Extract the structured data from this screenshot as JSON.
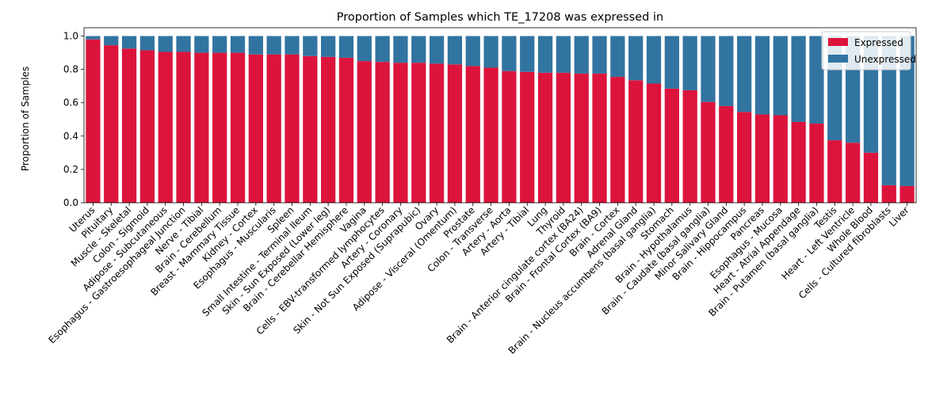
{
  "chart_data": {
    "type": "bar",
    "stacked": true,
    "title": "Proportion of Samples which TE_17208 was expressed in",
    "xlabel": "",
    "ylabel": "Proportion of Samples",
    "ylim": [
      0,
      1.05
    ],
    "yticks": [
      0.0,
      0.2,
      0.4,
      0.6,
      0.8,
      1.0
    ],
    "ytick_labels": [
      "0.0",
      "0.2",
      "0.4",
      "0.6",
      "0.8",
      "1.0"
    ],
    "grid": false,
    "legend_position": "top-right",
    "categories": [
      "Uterus",
      "Pituitary",
      "Muscle - Skeletal",
      "Colon - Sigmoid",
      "Adipose - Subcutaneous",
      "Esophagus - Gastroesophageal Junction",
      "Nerve - Tibial",
      "Brain - Cerebellum",
      "Breast - Mammary Tissue",
      "Kidney - Cortex",
      "Esophagus - Muscularis",
      "Spleen",
      "Small Intestine - Terminal Ileum",
      "Skin - Sun Exposed (Lower leg)",
      "Brain - Cerebellar Hemisphere",
      "Vagina",
      "Cells - EBV-transformed lymphocytes",
      "Artery - Coronary",
      "Skin - Not Sun Exposed (Suprapubic)",
      "Ovary",
      "Adipose - Visceral (Omentum)",
      "Prostate",
      "Colon - Transverse",
      "Artery - Aorta",
      "Artery - Tibial",
      "Lung",
      "Thyroid",
      "Brain - Anterior cingulate cortex (BA24)",
      "Brain - Frontal Cortex (BA9)",
      "Brain - Cortex",
      "Adrenal Gland",
      "Brain - Nucleus accumbens (basal ganglia)",
      "Stomach",
      "Brain - Hypothalamus",
      "Brain - Caudate (basal ganglia)",
      "Minor Salivary Gland",
      "Brain - Hippocampus",
      "Pancreas",
      "Esophagus - Mucosa",
      "Heart - Atrial Appendage",
      "Brain - Putamen (basal ganglia)",
      "Testis",
      "Heart - Left Ventricle",
      "Whole Blood",
      "Cells - Cultured fibroblasts",
      "Liver"
    ],
    "series": [
      {
        "name": "Expressed",
        "color": "#dc143c",
        "values": [
          0.98,
          0.945,
          0.925,
          0.915,
          0.905,
          0.905,
          0.9,
          0.9,
          0.9,
          0.89,
          0.89,
          0.89,
          0.88,
          0.875,
          0.87,
          0.85,
          0.845,
          0.84,
          0.84,
          0.835,
          0.83,
          0.82,
          0.81,
          0.79,
          0.785,
          0.78,
          0.78,
          0.775,
          0.775,
          0.755,
          0.735,
          0.715,
          0.685,
          0.675,
          0.605,
          0.58,
          0.545,
          0.53,
          0.525,
          0.485,
          0.475,
          0.375,
          0.36,
          0.3,
          0.105,
          0.1
        ]
      },
      {
        "name": "Unexpressed",
        "color": "#3274a1",
        "values": [
          0.02,
          0.055,
          0.075,
          0.085,
          0.095,
          0.095,
          0.1,
          0.1,
          0.1,
          0.11,
          0.11,
          0.11,
          0.12,
          0.125,
          0.13,
          0.15,
          0.155,
          0.16,
          0.16,
          0.165,
          0.17,
          0.18,
          0.19,
          0.21,
          0.215,
          0.22,
          0.22,
          0.225,
          0.225,
          0.245,
          0.265,
          0.285,
          0.315,
          0.325,
          0.395,
          0.42,
          0.455,
          0.47,
          0.475,
          0.515,
          0.525,
          0.625,
          0.64,
          0.7,
          0.895,
          0.9
        ]
      }
    ]
  }
}
